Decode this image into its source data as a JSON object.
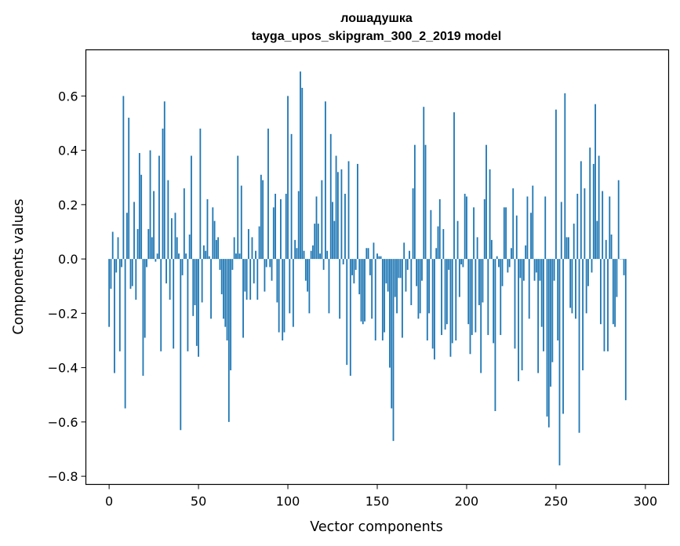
{
  "chart_data": {
    "type": "bar",
    "title": "лошадушка",
    "subtitle": "tayga_upos_skipgram_300_2_2019 model",
    "xlabel": "Vector components",
    "ylabel": "Components values",
    "xlim": [
      -13,
      313
    ],
    "ylim": [
      -0.83,
      0.77
    ],
    "xticks": [
      0,
      50,
      100,
      150,
      200,
      250,
      300
    ],
    "xtick_labels": [
      "0",
      "50",
      "100",
      "150",
      "200",
      "250",
      "300"
    ],
    "yticks": [
      -0.8,
      -0.6,
      -0.4,
      -0.2,
      0.0,
      0.2,
      0.4,
      0.6
    ],
    "ytick_labels": [
      "−0.8",
      "−0.6",
      "−0.4",
      "−0.2",
      "0.0",
      "0.2",
      "0.4",
      "0.6"
    ],
    "bar_color": "#1f77b4",
    "grid": false,
    "series": [
      {
        "name": "components",
        "values": [
          -0.25,
          -0.11,
          0.1,
          -0.42,
          -0.05,
          0.08,
          -0.34,
          -0.03,
          0.6,
          -0.55,
          0.17,
          0.52,
          -0.11,
          -0.1,
          0.21,
          -0.15,
          0.11,
          0.39,
          0.31,
          -0.43,
          -0.29,
          -0.03,
          0.11,
          0.4,
          0.08,
          0.25,
          -0.01,
          0.02,
          0.38,
          -0.34,
          0.48,
          0.58,
          -0.09,
          0.29,
          -0.15,
          0.15,
          -0.33,
          0.17,
          0.08,
          0.02,
          -0.63,
          -0.06,
          0.26,
          0.02,
          -0.34,
          0.09,
          0.38,
          -0.21,
          -0.17,
          -0.32,
          -0.36,
          0.48,
          -0.16,
          0.05,
          0.03,
          0.22,
          0.01,
          -0.22,
          0.19,
          0.14,
          0.07,
          0.08,
          -0.04,
          -0.13,
          -0.22,
          -0.25,
          -0.3,
          -0.6,
          -0.41,
          -0.04,
          0.08,
          0.02,
          0.38,
          0.02,
          0.27,
          -0.29,
          -0.12,
          -0.15,
          0.11,
          -0.15,
          0.08,
          -0.09,
          0.03,
          -0.15,
          0.12,
          0.31,
          0.29,
          -0.12,
          -0.03,
          0.48,
          -0.03,
          -0.08,
          0.19,
          0.24,
          -0.16,
          -0.27,
          0.22,
          -0.3,
          -0.27,
          0.24,
          0.6,
          -0.2,
          0.46,
          -0.25,
          0.07,
          0.04,
          0.25,
          0.69,
          0.63,
          0.03,
          -0.08,
          -0.12,
          -0.2,
          0.03,
          0.05,
          0.13,
          0.23,
          0.13,
          0.02,
          0.29,
          -0.04,
          0.58,
          0.03,
          -0.2,
          0.46,
          0.21,
          0.14,
          0.38,
          0.32,
          -0.22,
          0.33,
          -0.02,
          0.24,
          -0.39,
          0.36,
          -0.43,
          -0.06,
          -0.09,
          -0.04,
          0.35,
          -0.13,
          -0.23,
          -0.24,
          -0.23,
          0.04,
          0.04,
          -0.06,
          -0.22,
          0.06,
          -0.3,
          0.02,
          0.01,
          0.01,
          -0.3,
          -0.27,
          -0.09,
          -0.12,
          -0.4,
          -0.55,
          -0.67,
          -0.14,
          -0.2,
          -0.07,
          -0.07,
          -0.29,
          0.06,
          -0.12,
          -0.04,
          0.03,
          -0.17,
          0.26,
          0.42,
          -0.1,
          -0.22,
          -0.2,
          -0.08,
          0.56,
          0.42,
          -0.3,
          -0.2,
          0.18,
          -0.33,
          -0.37,
          0.04,
          0.12,
          0.22,
          -0.28,
          0.11,
          -0.26,
          -0.24,
          -0.04,
          -0.36,
          -0.31,
          0.54,
          -0.3,
          0.14,
          -0.14,
          -0.02,
          -0.03,
          0.24,
          0.23,
          -0.24,
          -0.35,
          -0.28,
          0.19,
          -0.27,
          0.08,
          -0.17,
          -0.42,
          -0.16,
          0.22,
          0.42,
          -0.28,
          0.33,
          0.07,
          -0.31,
          -0.56,
          0.01,
          -0.03,
          -0.28,
          -0.1,
          0.19,
          0.19,
          -0.05,
          -0.03,
          0.04,
          0.26,
          -0.33,
          0.16,
          -0.45,
          -0.07,
          -0.41,
          -0.08,
          0.05,
          0.23,
          -0.22,
          0.17,
          0.27,
          -0.08,
          -0.05,
          -0.42,
          -0.08,
          -0.25,
          -0.34,
          0.23,
          -0.58,
          -0.62,
          -0.47,
          -0.38,
          -0.08,
          0.55,
          -0.3,
          -0.76,
          0.21,
          -0.57,
          0.61,
          0.08,
          0.08,
          -0.18,
          -0.2,
          0.13,
          -0.22,
          0.24,
          -0.64,
          0.36,
          -0.41,
          0.26,
          -0.2,
          -0.1,
          0.41,
          -0.05,
          0.35,
          0.57,
          0.14,
          0.38,
          -0.24,
          0.25,
          -0.34,
          0.07,
          -0.34,
          0.23,
          0.09,
          -0.24,
          -0.25,
          -0.14,
          0.29,
          0.0,
          0.0,
          -0.06,
          -0.52
        ]
      }
    ]
  }
}
